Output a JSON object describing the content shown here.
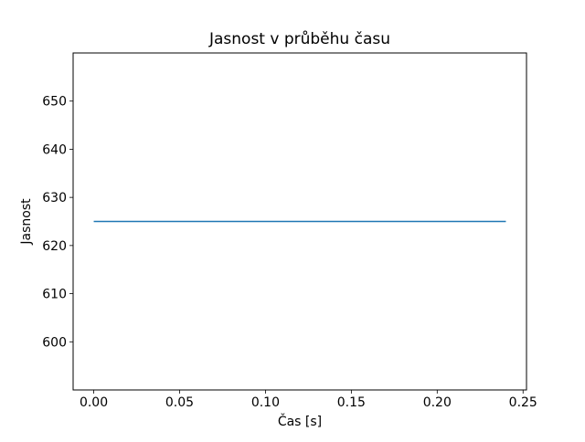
{
  "figure": {
    "background_color": "#ffffff",
    "text_color": "#000000",
    "spine_color": "#000000"
  },
  "chart_data": {
    "type": "line",
    "title": "Jasnost v průběhu času",
    "xlabel": "Čas [s]",
    "ylabel": "Jasnost",
    "x": [
      0.0,
      0.24
    ],
    "y": [
      625,
      625
    ],
    "line_color": "#1f77b4",
    "line_width": 1.5,
    "xlim": [
      -0.012,
      0.252
    ],
    "ylim": [
      590,
      660
    ],
    "x_tick_values": [
      0.0,
      0.05,
      0.1,
      0.15,
      0.2,
      0.25
    ],
    "x_tick_labels": [
      "0.00",
      "0.05",
      "0.10",
      "0.15",
      "0.20",
      "0.25"
    ],
    "y_tick_values": [
      600,
      610,
      620,
      630,
      640,
      650
    ],
    "y_tick_labels": [
      "600",
      "610",
      "620",
      "630",
      "640",
      "650"
    ],
    "grid": false,
    "legend_position": "none"
  }
}
